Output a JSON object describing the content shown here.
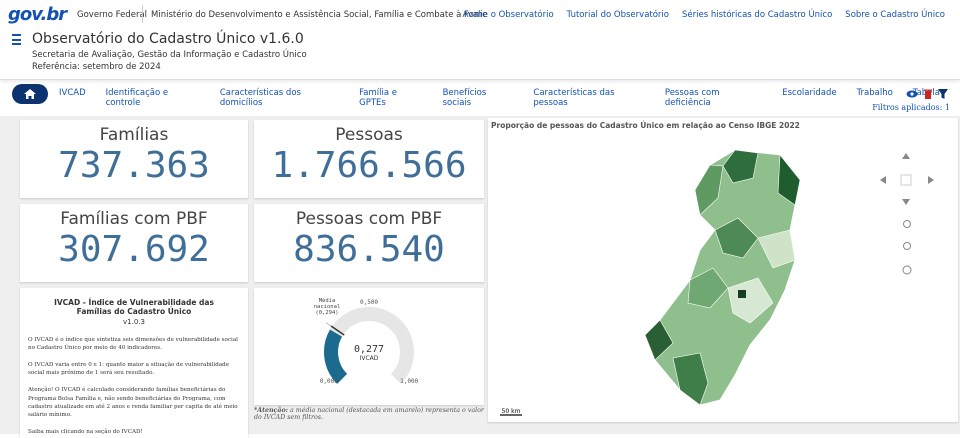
{
  "top_bar": {
    "logo": "gov.br",
    "government": "Governo Federal",
    "ministry": "Ministério do Desenvolvimento e Assistência Social, Família e Combate à Fome",
    "links": [
      "Avalie o Observatório",
      "Tutorial do Observatório",
      "Séries históricas do Cadastro Único",
      "Sobre o Cadastro Único"
    ]
  },
  "header": {
    "title": "Observatório do Cadastro Único v1.6.0",
    "subtitle": "Secretaria de Avaliação, Gestão da Informação e Cadastro Único",
    "reference": "Referência: setembro de 2024"
  },
  "nav": {
    "tabs": [
      "IVCAD",
      "Identificação e controle",
      "Características dos domicílios",
      "Família e GPTEs",
      "Benefícios sociais",
      "Características das pessoas",
      "Pessoas com deficiência",
      "Escolaridade",
      "Trabalho",
      "Tabela"
    ],
    "filters": "Filtros aplicados: 1"
  },
  "cards": [
    {
      "label": "Famílias",
      "value": "737.363"
    },
    {
      "label": "Pessoas",
      "value": "1.766.566"
    },
    {
      "label": "Famílias com PBF",
      "value": "307.692"
    },
    {
      "label": "Pessoas com PBF",
      "value": "836.540"
    }
  ],
  "ivcad_info": {
    "title": "IVCAD - Índice de Vulnerabilidade das Famílias do Cadastro Único",
    "version": "v1.0.3",
    "paragraphs": [
      "O IVCAD é o índice que sintetiza seis dimensões de vulnerabilidade social no Cadastro Único por meio de 40 indicadores.",
      "O IVCAD varia entre 0 e 1: quanto maior a situação de vulnerabilidade social mais próximo de 1 será seu resultado.",
      "Atenção! O IVCAD é calculado considerando famílias beneficiárias do Programa Bolsa Família e, não sendo beneficiárias do Programa, com cadastro atualizado em até 2 anos e renda familiar per capita de até meio salário mínimo.",
      "Saiba mais clicando na seção do IVCAD!"
    ]
  },
  "gauge": {
    "min": {
      "value": 0,
      "label": "0,000"
    },
    "mid": {
      "value": 0.5,
      "label": "0,500"
    },
    "max": {
      "value": 1,
      "label": "1,000"
    },
    "value": {
      "value": 0.277,
      "label": "0,277"
    },
    "national": {
      "value": 0.294,
      "label": "(0,294)"
    },
    "name": "IVCAD",
    "national_name": "Média nacional",
    "note_bold": "*Atenção:",
    "note": "a média nacional (destacada em amarelo) representa o valor do IVCAD sem filtros."
  },
  "map": {
    "title": "Proporção de pessoas do Cadastro Único em relação ao Censo IBGE 2022",
    "scale": "50 km"
  }
}
